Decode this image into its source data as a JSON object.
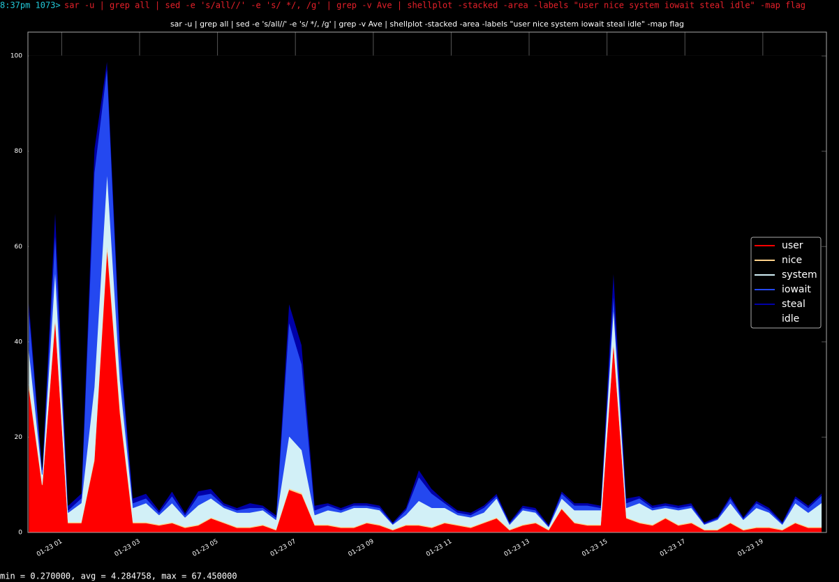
{
  "terminal": {
    "prompt": "8:37pm 1073>",
    "command": "sar -u | grep all | sed -e 's/all//' -e 's/   */, /g' | grep -v Ave | shellplot -stacked -area -labels \"user nice system iowait steal idle\" -map flag",
    "status": "min = 0.270000, avg = 4.284758, max = 67.450000"
  },
  "chart_data": {
    "type": "stacked-area",
    "title": "sar -u | grep all | sed -e 's/all//' -e 's/   */, /g' | grep -v Ave | shellplot -stacked -area -labels \"user nice system iowait steal idle\" -map flag",
    "x": [
      10,
      30,
      50,
      70,
      90,
      110,
      130,
      150,
      170,
      190,
      210,
      230,
      250,
      270,
      290,
      310,
      330,
      350,
      370,
      390,
      410,
      430,
      450,
      470,
      490,
      510,
      530,
      550,
      570,
      590,
      610,
      630,
      650,
      670,
      690,
      710,
      730,
      750,
      770,
      790,
      810,
      830,
      850,
      870,
      890,
      910,
      930,
      950,
      970,
      990,
      1010,
      1030,
      1050,
      1070,
      1090,
      1110,
      1130,
      1150,
      1170,
      1190,
      1210,
      1230
    ],
    "series": [
      {
        "name": "user",
        "color": "#ff0000",
        "values": [
          30,
          10,
          45,
          2,
          2,
          15,
          60,
          25,
          2,
          2,
          1.5,
          2,
          1,
          1.5,
          3,
          2,
          1,
          1,
          1.5,
          0.5,
          9,
          8,
          1.5,
          1.5,
          1,
          1,
          2,
          1.5,
          0.5,
          1.5,
          1.5,
          1,
          2,
          1.5,
          1,
          2,
          3,
          0.5,
          1.5,
          2,
          0.5,
          5,
          2,
          1.5,
          1.5,
          40,
          3,
          2,
          1.5,
          3,
          1.5,
          2,
          0.5,
          0.5,
          2,
          0.5,
          1,
          1,
          0.5,
          2,
          1,
          1
        ]
      },
      {
        "name": "nice",
        "color": "#ffd28a",
        "values": [
          1,
          0.2,
          0.5,
          0.2,
          0.2,
          0.5,
          1,
          1,
          0.2,
          0.2,
          0.2,
          0.2,
          0.2,
          0.2,
          0.2,
          0.2,
          0.2,
          0.2,
          0.2,
          0.2,
          0.3,
          0.3,
          0.2,
          0.2,
          0.2,
          0.2,
          0.2,
          0.2,
          0.2,
          0.2,
          0.2,
          0.2,
          0.2,
          0.2,
          0.2,
          0.2,
          0.2,
          0.2,
          0.2,
          0.2,
          0.2,
          0.2,
          0.2,
          0.2,
          0.2,
          0.5,
          0.2,
          0.2,
          0.2,
          0.2,
          0.2,
          0.2,
          0.2,
          0.2,
          0.2,
          0.2,
          0.2,
          0.2,
          0.2,
          0.2,
          0.2,
          0.2
        ]
      },
      {
        "name": "system",
        "color": "#d2f0f7",
        "values": [
          7,
          2,
          10,
          2,
          4,
          15,
          15,
          6,
          3,
          4,
          2,
          4,
          2,
          4,
          4,
          3,
          3,
          3,
          3,
          2,
          11,
          9,
          2,
          3,
          3,
          4,
          3,
          3,
          1,
          2,
          5,
          4,
          3,
          2,
          2,
          2,
          4,
          1,
          3,
          2,
          0.5,
          2,
          2.5,
          3,
          3,
          7,
          2,
          4,
          3,
          2,
          3,
          3,
          1,
          2,
          4,
          2,
          4,
          3,
          1,
          4,
          3,
          5
        ]
      },
      {
        "name": "iowait",
        "color": "#2448f0",
        "values": [
          8,
          1,
          8,
          0.5,
          1,
          45,
          22,
          6,
          1,
          1,
          0.5,
          1.5,
          0.5,
          2,
          1,
          0.5,
          0.5,
          1,
          0.5,
          0.5,
          24,
          18,
          1,
          1,
          0.5,
          0.5,
          0.5,
          0.5,
          0.2,
          1,
          5,
          3,
          1,
          0.5,
          0.5,
          1,
          0.5,
          0.3,
          0.5,
          0.5,
          0.2,
          1,
          1,
          1,
          0.5,
          3,
          1,
          1,
          0.5,
          0.5,
          0.5,
          0.5,
          0.2,
          0.3,
          1,
          0.3,
          1,
          0.5,
          0.3,
          1,
          1,
          1.5
        ]
      },
      {
        "name": "steal",
        "color": "#0000a8",
        "values": [
          2,
          0.5,
          5,
          1,
          1,
          5,
          1.5,
          2,
          1,
          1,
          0.5,
          1,
          0.5,
          1,
          1,
          0.5,
          0.5,
          1,
          0.5,
          0.5,
          4,
          4,
          1,
          0.5,
          0.5,
          0.5,
          0.5,
          0.5,
          0.3,
          0.5,
          1.5,
          1,
          0.5,
          0.5,
          0.5,
          0.5,
          0.5,
          0.3,
          0.5,
          0.5,
          0.3,
          0.5,
          0.5,
          0.5,
          0.5,
          5,
          1,
          0.5,
          0.5,
          0.5,
          0.5,
          0.5,
          0.3,
          0.3,
          0.5,
          0.3,
          0.5,
          0.5,
          0.3,
          0.5,
          0.5,
          0.5
        ]
      },
      {
        "name": "idle",
        "color": "#000000",
        "values": [
          52,
          86.3,
          31.5,
          94.3,
          91.8,
          19.5,
          0.5,
          60,
          92.8,
          91.8,
          95.3,
          91.3,
          95.8,
          91.3,
          90.8,
          93.8,
          94.8,
          93.8,
          94.3,
          96.3,
          51.7,
          60.7,
          94.3,
          93.8,
          94.8,
          93.8,
          93.8,
          94.3,
          97.8,
          94.8,
          86.8,
          90.8,
          93.3,
          95.3,
          95.8,
          94.3,
          91.8,
          97.7,
          94.3,
          94.8,
          98.3,
          91.3,
          93.8,
          93.8,
          94.3,
          44.5,
          92.8,
          92.3,
          94.3,
          93.8,
          94.3,
          93.8,
          97.8,
          96.7,
          92.3,
          96.7,
          93.3,
          94.8,
          97.7,
          92.3,
          94.3,
          91.8
        ]
      }
    ],
    "xlim": [
      8,
      1238
    ],
    "xticks": [
      {
        "value": 60,
        "label": "01-23 01"
      },
      {
        "value": 180,
        "label": "01-23 03"
      },
      {
        "value": 300,
        "label": "01-23 05"
      },
      {
        "value": 420,
        "label": "01-23 07"
      },
      {
        "value": 540,
        "label": "01-23 09"
      },
      {
        "value": 660,
        "label": "01-23 11"
      },
      {
        "value": 780,
        "label": "01-23 13"
      },
      {
        "value": 900,
        "label": "01-23 15"
      },
      {
        "value": 1020,
        "label": "01-23 17"
      },
      {
        "value": 1140,
        "label": "01-23 19"
      }
    ],
    "ylim": [
      0,
      105
    ],
    "yticks": [
      0,
      20,
      40,
      60,
      80,
      100
    ],
    "grid": true,
    "legend": "right"
  }
}
